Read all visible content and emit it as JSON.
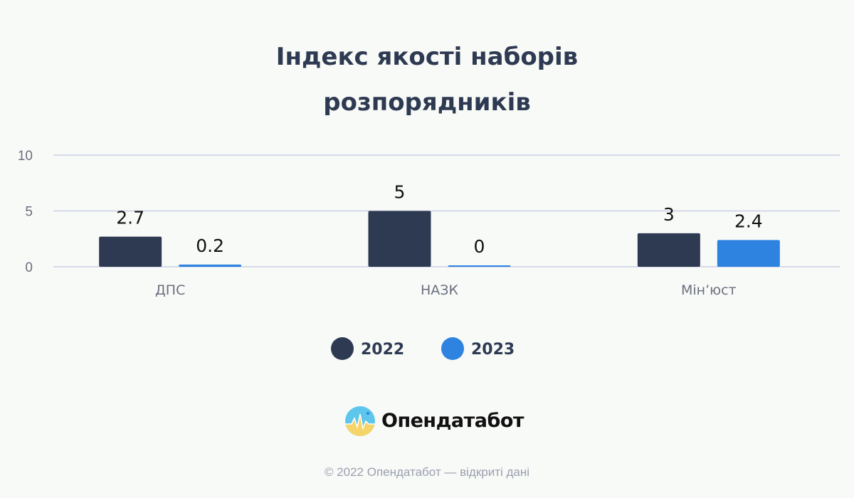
{
  "chart_data": {
    "type": "bar",
    "title_lines": [
      "Індекс якості наборів",
      "розпорядників"
    ],
    "categories": [
      "ДПС",
      "НАЗК",
      "Мін’юст"
    ],
    "series": [
      {
        "name": "2022",
        "values": [
          2.7,
          5,
          3
        ],
        "labels": [
          "2.7",
          "5",
          "3"
        ],
        "color": "#2e3a52"
      },
      {
        "name": "2023",
        "values": [
          0.2,
          0,
          2.4
        ],
        "labels": [
          "0.2",
          "0",
          "2.4"
        ],
        "color": "#2e82e0"
      }
    ],
    "ylim": [
      0,
      10
    ],
    "yticks": [
      "0",
      "5",
      "10"
    ],
    "grid": true,
    "legend_position": "bottom"
  },
  "logo": {
    "text": "Опендатабот",
    "icon": "opendatabot-logo-icon"
  },
  "footer": "© 2022 Опендатабот — відкриті дані"
}
